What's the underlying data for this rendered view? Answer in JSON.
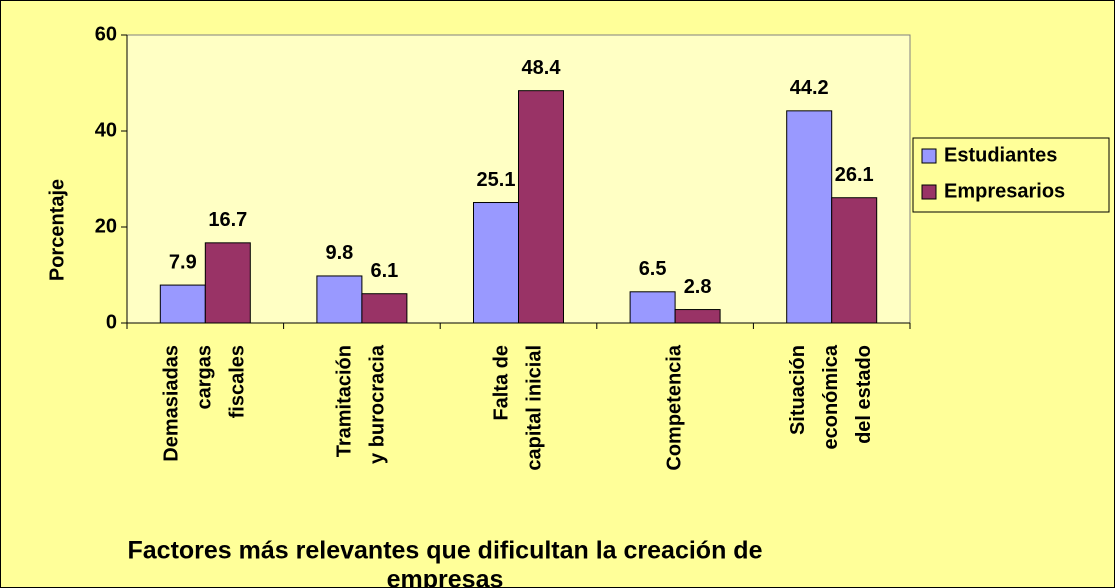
{
  "chart_data": {
    "type": "bar",
    "categories": [
      [
        "Demasiadas",
        "cargas",
        "fiscales"
      ],
      [
        "Tramitación",
        "y burocracia"
      ],
      [
        "Falta de",
        "capital inicial"
      ],
      [
        "Competencia"
      ],
      [
        "Situación",
        "económica",
        "del estado"
      ]
    ],
    "series": [
      {
        "name": "Estudiantes",
        "color": "#9999ff",
        "values": [
          7.9,
          9.8,
          25.1,
          6.5,
          44.2
        ]
      },
      {
        "name": "Empresarios",
        "color": "#993366",
        "values": [
          16.7,
          6.1,
          48.4,
          2.8,
          26.1
        ]
      }
    ],
    "xlabel": [
      "Factores más relevantes que dificultan la creación de",
      "empresas"
    ],
    "ylabel": "Porcentaje",
    "ylim": [
      0,
      60
    ],
    "yticks": [
      0,
      20,
      40,
      60
    ],
    "legend": "right"
  }
}
